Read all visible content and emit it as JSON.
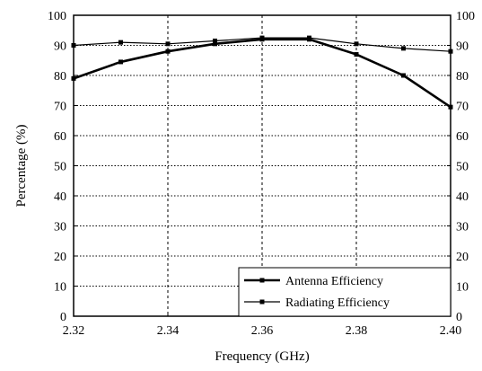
{
  "chart_data": {
    "type": "line",
    "title": "",
    "xlabel": "Frequency (GHz)",
    "ylabel": "Percentage (%)",
    "xlim": [
      2.32,
      2.4
    ],
    "ylim": [
      0,
      100
    ],
    "x_ticks": [
      "2.32",
      "2.34",
      "2.36",
      "2.38",
      "2.40"
    ],
    "y_ticks": [
      "0",
      "10",
      "20",
      "30",
      "40",
      "50",
      "60",
      "70",
      "80",
      "90",
      "100"
    ],
    "right_y_ticks": [
      "0",
      "10",
      "20",
      "30",
      "40",
      "50",
      "60",
      "70",
      "80",
      "90",
      "100"
    ],
    "grid": true,
    "legend_position": "bottom-right",
    "series": [
      {
        "name": "Antenna Efficiency",
        "color": "#000000",
        "line_style": "solid-thick",
        "x": [
          2.32,
          2.33,
          2.34,
          2.35,
          2.36,
          2.37,
          2.38,
          2.39,
          2.4
        ],
        "values": [
          79,
          84.5,
          88,
          90.5,
          92,
          92,
          87,
          80,
          69.5
        ]
      },
      {
        "name": "Radiating Efficiency",
        "color": "#000000",
        "line_style": "solid-thin",
        "x": [
          2.32,
          2.33,
          2.34,
          2.35,
          2.36,
          2.37,
          2.38,
          2.39,
          2.4
        ],
        "values": [
          90,
          91,
          90.5,
          91.5,
          92.5,
          92.5,
          90.5,
          89,
          88
        ]
      }
    ]
  }
}
